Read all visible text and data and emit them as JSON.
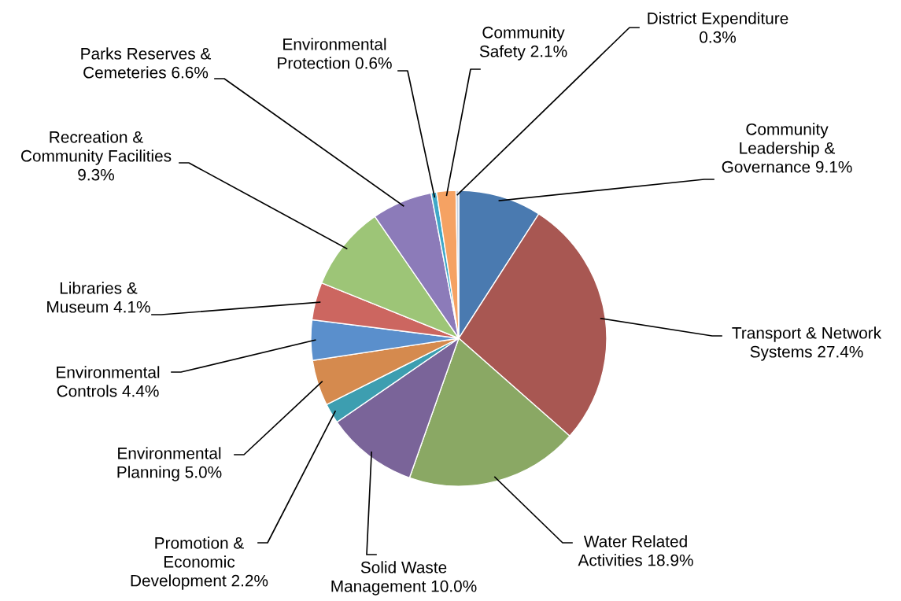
{
  "chart_data": {
    "type": "pie",
    "categories": [
      "Community\nLeadership &\nGovernance",
      "Transport & Network\nSystems",
      "Water Related\nActivities",
      "Solid Waste\nManagement",
      "Promotion &\nEconomic\nDevelopment",
      "Environmental\nPlanning",
      "Environmental\nControls",
      "Libraries &\nMuseum",
      "Recreation &\nCommunity Facilities\n",
      "Parks Reserves &\nCemeteries",
      "Environmental\nProtection",
      "Community\nSafety",
      "District Expenditure\n"
    ],
    "values": [
      9.1,
      27.4,
      18.9,
      10.0,
      2.2,
      5.0,
      4.4,
      4.1,
      9.3,
      6.6,
      0.6,
      2.1,
      0.3
    ],
    "value_labels": [
      "9.1%",
      "27.4%",
      "18.9%",
      "10.0%",
      "2.2%",
      "5.0%",
      "4.4%",
      "4.1%",
      "9.3%",
      "6.6%",
      "0.6%",
      "2.1%",
      "0.3%"
    ],
    "colors": [
      "#4a7ab0",
      "#a85752",
      "#8aa864",
      "#7a6499",
      "#3d9eb0",
      "#d58a4e",
      "#5a8fcc",
      "#cc6660",
      "#9dc577",
      "#8c7bb9",
      "#3fa8c8",
      "#f5a263",
      "#c8d2e0"
    ]
  }
}
